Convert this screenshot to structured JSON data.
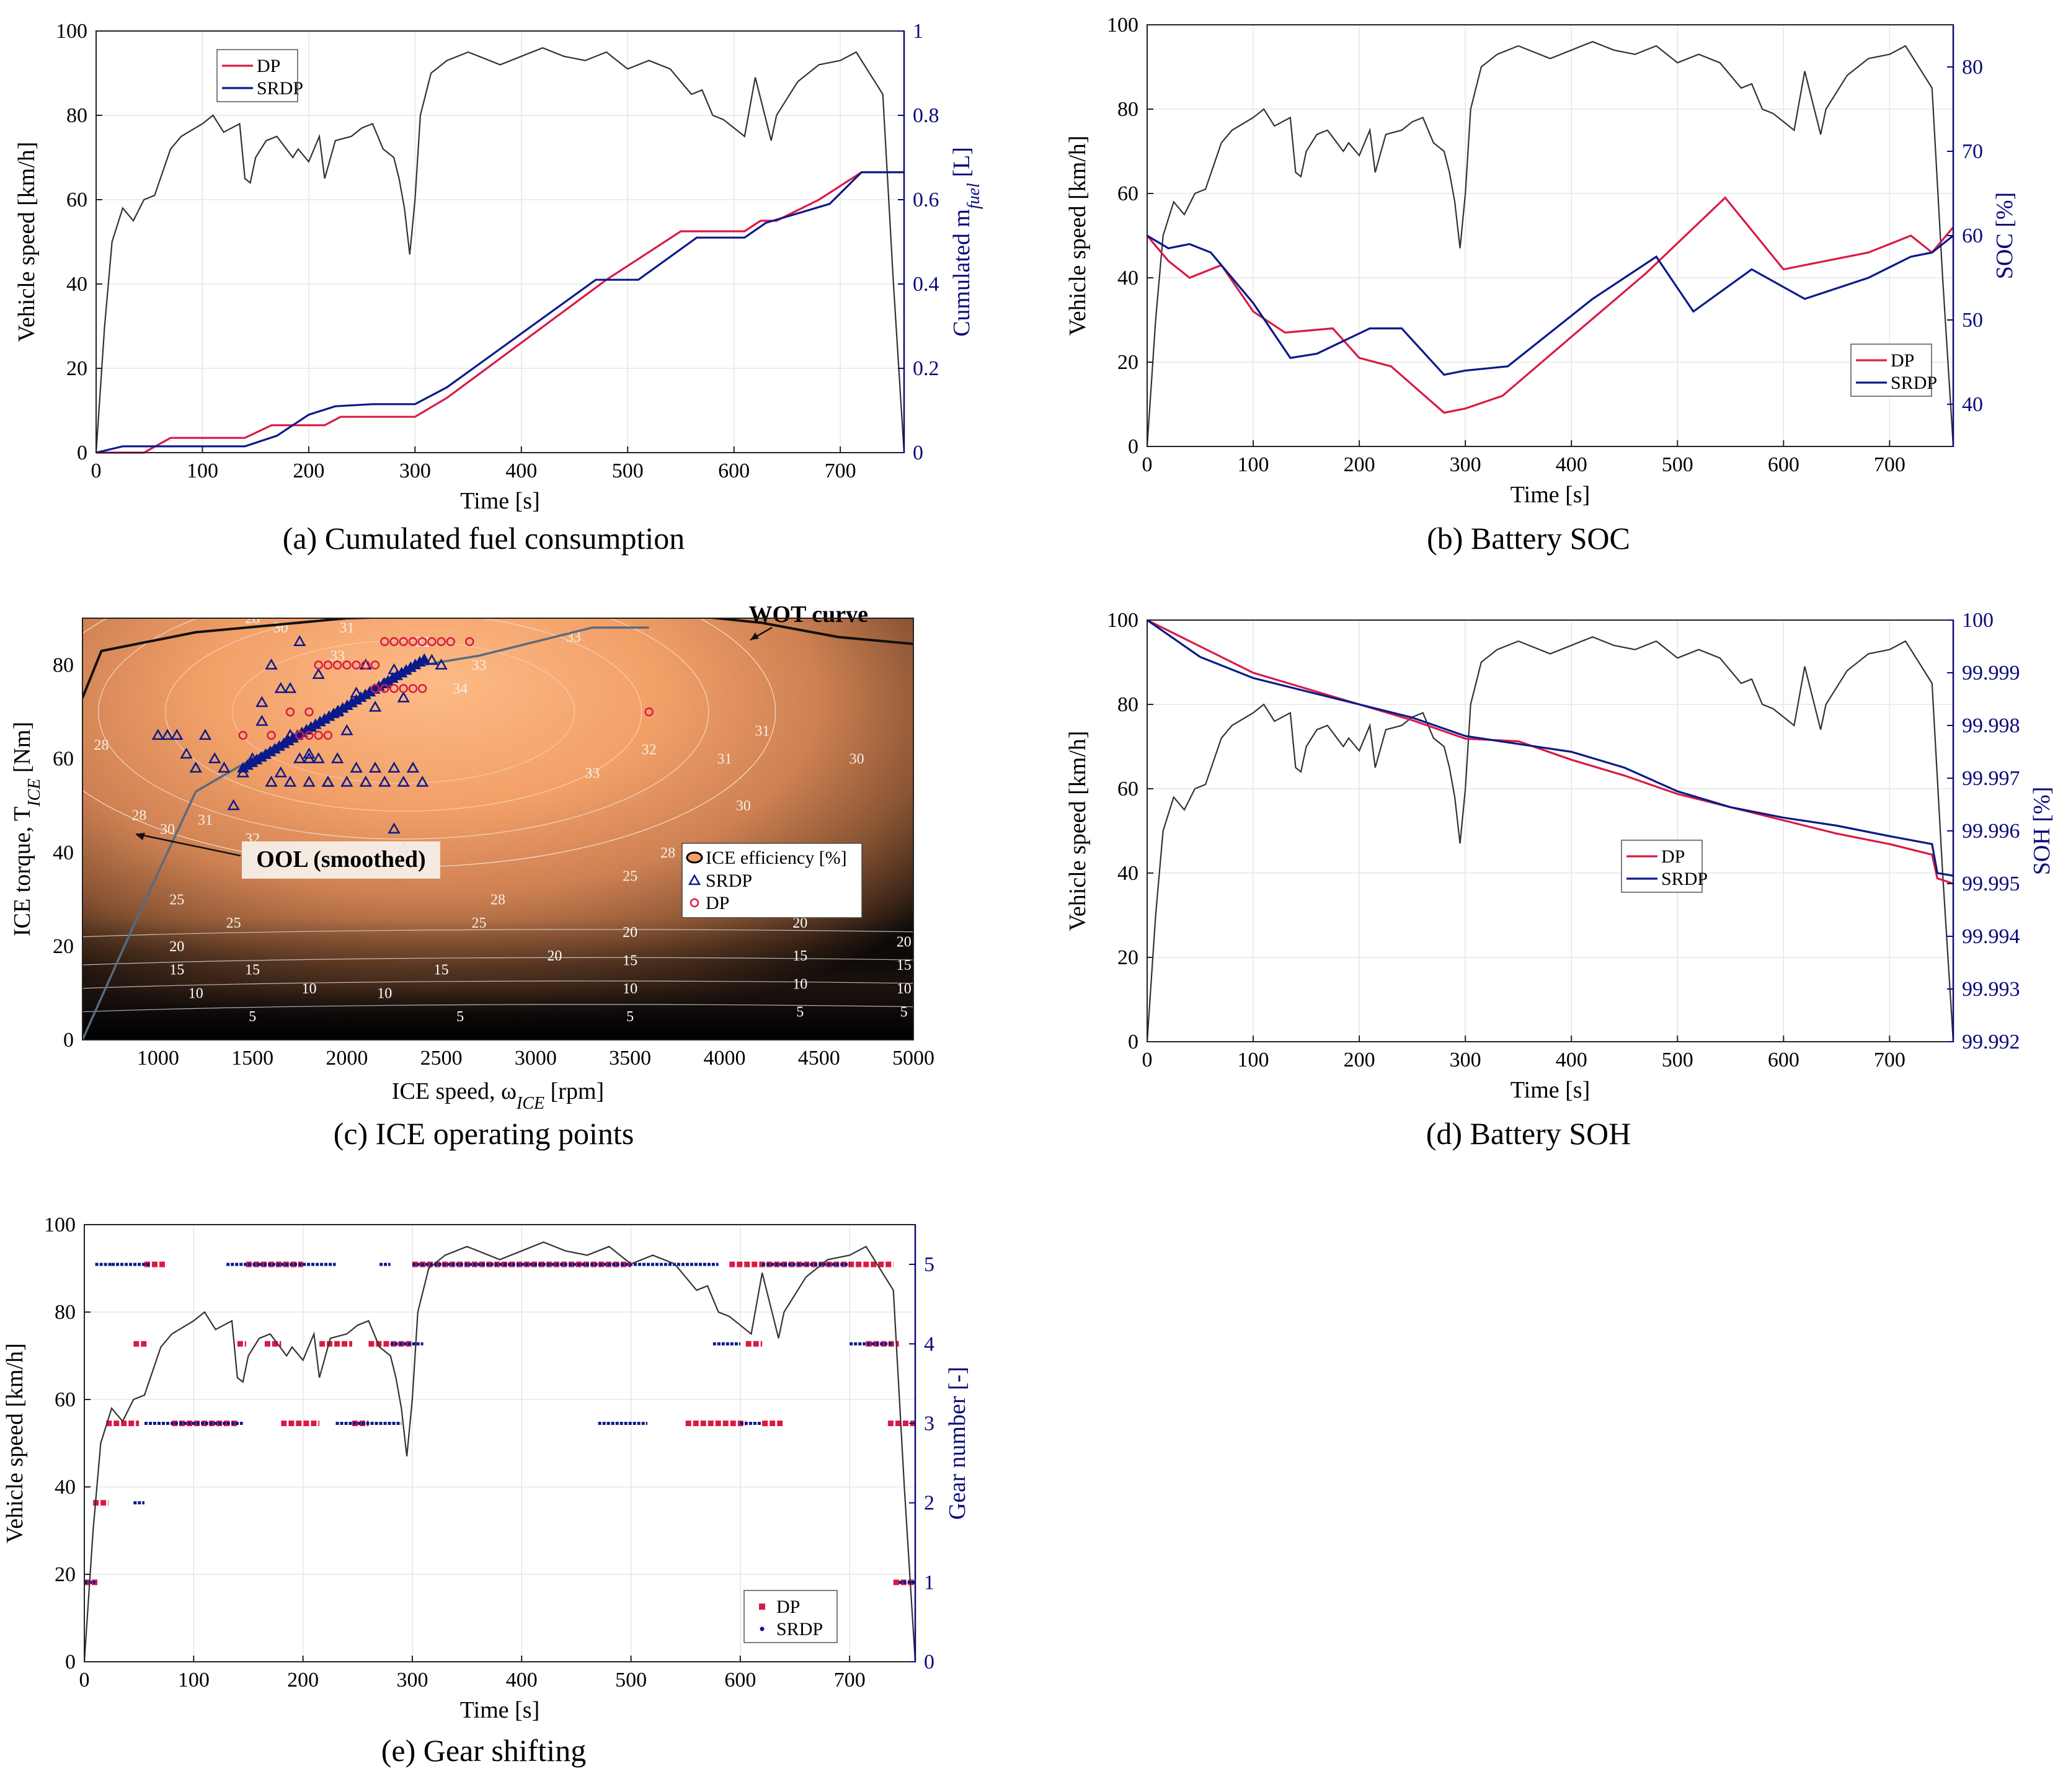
{
  "colors": {
    "dp": "#d91a45",
    "srdp": "#0a1a8a",
    "speed": "#333333",
    "axis_blue": "#0a0a7a"
  },
  "chart_data": [
    {
      "id": "a",
      "type": "line",
      "caption": "(a) Cumulated fuel consumption",
      "xlabel": "Time [s]",
      "ylabel": "Vehicle speed [km/h]",
      "y2label": "Cumulated  m",
      "y2label_sub": "fuel",
      "y2label_unit": " [L]",
      "xlim": [
        0,
        760
      ],
      "ylim": [
        0,
        100
      ],
      "y2lim": [
        0,
        1
      ],
      "xticks": [
        "0",
        "100",
        "200",
        "300",
        "400",
        "500",
        "600",
        "700"
      ],
      "yticks": [
        "0",
        "20",
        "40",
        "60",
        "80",
        "100"
      ],
      "y2ticks": [
        "0",
        "0.2",
        "0.4",
        "0.6",
        "0.8",
        "1"
      ],
      "legend": [
        "DP",
        "SRDP"
      ],
      "series": [
        {
          "name": "DP",
          "axis": "y2",
          "x": [
            0,
            45,
            70,
            140,
            165,
            215,
            230,
            300,
            330,
            480,
            550,
            610,
            625,
            640,
            680,
            720,
            760
          ],
          "y": [
            0,
            0,
            0.035,
            0.035,
            0.065,
            0.065,
            0.085,
            0.085,
            0.13,
            0.41,
            0.525,
            0.525,
            0.55,
            0.55,
            0.6,
            0.665,
            0.665
          ]
        },
        {
          "name": "SRDP",
          "axis": "y2",
          "x": [
            0,
            25,
            140,
            170,
            200,
            225,
            260,
            300,
            330,
            470,
            510,
            565,
            610,
            630,
            690,
            720,
            760
          ],
          "y": [
            0,
            0.015,
            0.015,
            0.04,
            0.09,
            0.11,
            0.115,
            0.115,
            0.155,
            0.41,
            0.41,
            0.51,
            0.51,
            0.545,
            0.59,
            0.665,
            0.665
          ]
        }
      ]
    },
    {
      "id": "b",
      "type": "line",
      "caption": "(b) Battery SOC",
      "xlabel": "Time [s]",
      "ylabel": "Vehicle speed [km/h]",
      "y2label": "SOC [%]",
      "xlim": [
        0,
        760
      ],
      "ylim": [
        0,
        100
      ],
      "y2lim": [
        35,
        85
      ],
      "xticks": [
        "0",
        "100",
        "200",
        "300",
        "400",
        "500",
        "600",
        "700"
      ],
      "yticks": [
        "0",
        "20",
        "40",
        "60",
        "80",
        "100"
      ],
      "y2ticks": [
        "40",
        "50",
        "60",
        "70",
        "80"
      ],
      "legend": [
        "DP",
        "SRDP"
      ],
      "series": [
        {
          "name": "DP",
          "axis": "y2",
          "x": [
            0,
            20,
            40,
            70,
            100,
            130,
            175,
            200,
            230,
            280,
            300,
            335,
            400,
            470,
            545,
            600,
            620,
            680,
            720,
            740,
            760
          ],
          "y": [
            60,
            57,
            55,
            56.5,
            51,
            48.5,
            49,
            45.5,
            44.5,
            39,
            39.5,
            41,
            48,
            55.5,
            64.5,
            56,
            56.5,
            58,
            60,
            58,
            61
          ]
        },
        {
          "name": "SRDP",
          "axis": "y2",
          "x": [
            0,
            20,
            40,
            60,
            100,
            135,
            160,
            210,
            240,
            280,
            300,
            340,
            420,
            480,
            515,
            570,
            620,
            680,
            720,
            740,
            760
          ],
          "y": [
            60,
            58.5,
            59,
            58,
            52,
            45.5,
            46,
            49,
            49,
            43.5,
            44,
            44.5,
            52.5,
            57.5,
            51,
            56,
            52.5,
            55,
            57.5,
            58,
            60
          ]
        }
      ]
    },
    {
      "id": "c",
      "type": "heatmap",
      "caption": "(c) ICE operating points",
      "xlabel": "ICE speed,  ω",
      "xlabel_sub": "ICE",
      "xlabel_unit": "  [rpm]",
      "ylabel": "ICE torque,  T",
      "ylabel_sub": "ICE",
      "ylabel_unit": "  [Nm]",
      "xlim": [
        600,
        5000
      ],
      "ylim": [
        0,
        90
      ],
      "xticks": [
        "1000",
        "1500",
        "2000",
        "2500",
        "3000",
        "3500",
        "4000",
        "4500",
        "5000"
      ],
      "yticks": [
        "0",
        "20",
        "40",
        "60",
        "80"
      ],
      "annotations": [
        "WOT curve",
        "OOL (smoothed)"
      ],
      "legend": [
        "ICE efficiency [%]",
        "SRDP",
        "DP"
      ],
      "contour_labels": [
        "5",
        "10",
        "15",
        "20",
        "25",
        "28",
        "30",
        "31",
        "32",
        "33",
        "34"
      ],
      "wot": {
        "x": [
          600,
          700,
          1200,
          2000,
          2500,
          3250,
          3600,
          4200,
          4600,
          5000
        ],
        "y": [
          73,
          83,
          87,
          90,
          90.5,
          91.5,
          91.5,
          89,
          86,
          84.5
        ]
      },
      "ool": {
        "x": [
          600,
          900,
          1200,
          1500,
          1900,
          2300,
          2400,
          2700,
          3300,
          3600
        ],
        "y": [
          0,
          27,
          53,
          60,
          69,
          79,
          80,
          82,
          88,
          88
        ]
      },
      "srdp_points": {
        "x": [
          1000,
          1050,
          1100,
          1150,
          1200,
          1250,
          1300,
          1350,
          1400,
          1450,
          1500,
          1550,
          1600,
          1650,
          1700,
          1750,
          1800,
          1850,
          1900,
          1950,
          2000,
          2050,
          2100,
          2150,
          2200,
          2250,
          2300,
          2350,
          2400,
          1600,
          1700,
          1800,
          1900,
          2000,
          2100,
          2200,
          2300,
          1750,
          1800,
          1850,
          1950,
          2050,
          2150,
          2250,
          2350,
          2450,
          2500,
          1550,
          1650,
          1700,
          2250,
          2300
        ],
        "y": [
          65,
          65,
          65,
          61,
          58,
          65,
          60,
          58,
          50,
          57,
          60,
          68,
          80,
          57,
          75,
          85,
          61,
          78,
          55,
          70,
          66,
          74,
          80,
          71,
          76,
          79,
          73,
          58,
          55,
          55,
          55,
          55,
          55,
          55,
          55,
          55,
          55,
          60,
          60,
          60,
          60,
          58,
          58,
          58,
          58,
          81,
          80,
          72,
          75,
          65,
          45,
          41
        ]
      },
      "dp_points": {
        "x": [
          1450,
          1600,
          1700,
          1750,
          1800,
          1850,
          1900,
          1950,
          2000,
          2050,
          2100,
          2150,
          2200,
          2250,
          2300,
          2350,
          2400,
          2450,
          2500,
          2550,
          2650,
          3600,
          1750,
          1800,
          1850,
          1900,
          2150,
          2200,
          2250,
          2300,
          2350,
          2400
        ],
        "y": [
          65,
          65,
          70,
          65,
          70,
          80,
          80,
          80,
          80,
          80,
          80,
          80,
          85,
          85,
          85,
          85,
          85,
          85,
          85,
          85,
          85,
          70,
          65,
          65,
          65,
          65,
          75,
          75,
          75,
          75,
          75,
          75
        ]
      }
    },
    {
      "id": "d",
      "type": "line",
      "caption": "(d) Battery SOH",
      "xlabel": "Time [s]",
      "ylabel": "Vehicle speed [km/h]",
      "y2label": "SOH [%]",
      "xlim": [
        0,
        760
      ],
      "ylim": [
        0,
        100
      ],
      "y2lim": [
        99.992,
        100
      ],
      "xticks": [
        "0",
        "100",
        "200",
        "300",
        "400",
        "500",
        "600",
        "700"
      ],
      "yticks": [
        "0",
        "20",
        "40",
        "60",
        "80",
        "100"
      ],
      "y2ticks": [
        "99.992",
        "99.993",
        "99.994",
        "99.995",
        "99.996",
        "99.997",
        "99.998",
        "99.999",
        "100"
      ],
      "legend": [
        "DP",
        "SRDP"
      ],
      "series": [
        {
          "name": "DP",
          "axis": "y2",
          "x": [
            0,
            50,
            100,
            150,
            200,
            250,
            300,
            350,
            400,
            450,
            500,
            550,
            600,
            650,
            700,
            740,
            745,
            760
          ],
          "y": [
            100,
            99.9995,
            99.999,
            99.9987,
            99.9984,
            99.9981,
            99.99775,
            99.9977,
            99.99735,
            99.99705,
            99.9967,
            99.99645,
            99.9962,
            99.99595,
            99.99575,
            99.99555,
            99.9951,
            99.995
          ]
        },
        {
          "name": "SRDP",
          "axis": "y2",
          "x": [
            0,
            50,
            100,
            150,
            200,
            250,
            300,
            350,
            400,
            450,
            500,
            550,
            600,
            650,
            700,
            740,
            745,
            760
          ],
          "y": [
            100,
            99.9993,
            99.9989,
            99.99865,
            99.9984,
            99.99815,
            99.9978,
            99.99765,
            99.9975,
            99.9972,
            99.99675,
            99.99645,
            99.99625,
            99.9961,
            99.9959,
            99.99575,
            99.9952,
            99.99515
          ]
        }
      ]
    },
    {
      "id": "e",
      "type": "scatter",
      "caption": "(e) Gear shifting",
      "xlabel": "Time [s]",
      "ylabel": "Vehicle speed [km/h]",
      "y2label": "Gear number [-]",
      "xlim": [
        0,
        760
      ],
      "ylim": [
        0,
        100
      ],
      "y2lim": [
        0,
        5.5
      ],
      "xticks": [
        "0",
        "100",
        "200",
        "300",
        "400",
        "500",
        "600",
        "700"
      ],
      "yticks": [
        "0",
        "20",
        "40",
        "60",
        "80",
        "100"
      ],
      "y2ticks": [
        "0",
        "1",
        "2",
        "3",
        "4",
        "5"
      ],
      "legend": [
        "DP",
        "SRDP"
      ],
      "dp_segments": [
        [
          0,
          12,
          1
        ],
        [
          8,
          22,
          2
        ],
        [
          20,
          50,
          3
        ],
        [
          45,
          58,
          4
        ],
        [
          55,
          75,
          5
        ],
        [
          80,
          140,
          3
        ],
        [
          140,
          148,
          4
        ],
        [
          148,
          200,
          5
        ],
        [
          165,
          180,
          4
        ],
        [
          180,
          215,
          3
        ],
        [
          215,
          245,
          4
        ],
        [
          245,
          260,
          3
        ],
        [
          260,
          300,
          4
        ],
        [
          300,
          500,
          5
        ],
        [
          550,
          605,
          3
        ],
        [
          605,
          620,
          4
        ],
        [
          620,
          640,
          3
        ],
        [
          590,
          740,
          5
        ],
        [
          715,
          745,
          4
        ],
        [
          735,
          760,
          3
        ],
        [
          740,
          760,
          1
        ]
      ],
      "srdp_segments": [
        [
          0,
          10,
          1
        ],
        [
          45,
          55,
          2
        ],
        [
          10,
          25,
          5
        ],
        [
          25,
          60,
          5
        ],
        [
          55,
          145,
          3
        ],
        [
          130,
          160,
          5
        ],
        [
          160,
          230,
          5
        ],
        [
          230,
          290,
          3
        ],
        [
          270,
          280,
          5
        ],
        [
          300,
          580,
          5
        ],
        [
          280,
          310,
          4
        ],
        [
          470,
          515,
          3
        ],
        [
          575,
          600,
          4
        ],
        [
          600,
          620,
          3
        ],
        [
          620,
          700,
          5
        ],
        [
          700,
          740,
          4
        ],
        [
          745,
          760,
          1
        ]
      ]
    }
  ],
  "speed_profile": {
    "t": [
      0,
      8,
      15,
      25,
      35,
      45,
      55,
      70,
      80,
      100,
      110,
      120,
      135,
      140,
      145,
      150,
      160,
      170,
      185,
      190,
      200,
      210,
      215,
      225,
      240,
      250,
      260,
      270,
      280,
      285,
      290,
      295,
      300,
      305,
      315,
      330,
      350,
      380,
      400,
      420,
      440,
      460,
      480,
      500,
      520,
      540,
      560,
      570,
      580,
      590,
      600,
      610,
      620,
      635,
      640,
      650,
      660,
      680,
      700,
      715,
      720,
      740,
      750,
      760
    ],
    "v": [
      0,
      30,
      50,
      58,
      55,
      60,
      61,
      72,
      75,
      78,
      80,
      76,
      78,
      65,
      64,
      70,
      74,
      75,
      70,
      72,
      69,
      75,
      65,
      74,
      75,
      77,
      78,
      72,
      70,
      65,
      58,
      47,
      60,
      80,
      90,
      93,
      95,
      92,
      94,
      96,
      94,
      93,
      95,
      91,
      93,
      91,
      85,
      86,
      80,
      79,
      77,
      75,
      89,
      74,
      80,
      84,
      88,
      92,
      93,
      95,
      93,
      85,
      40,
      0
    ]
  }
}
